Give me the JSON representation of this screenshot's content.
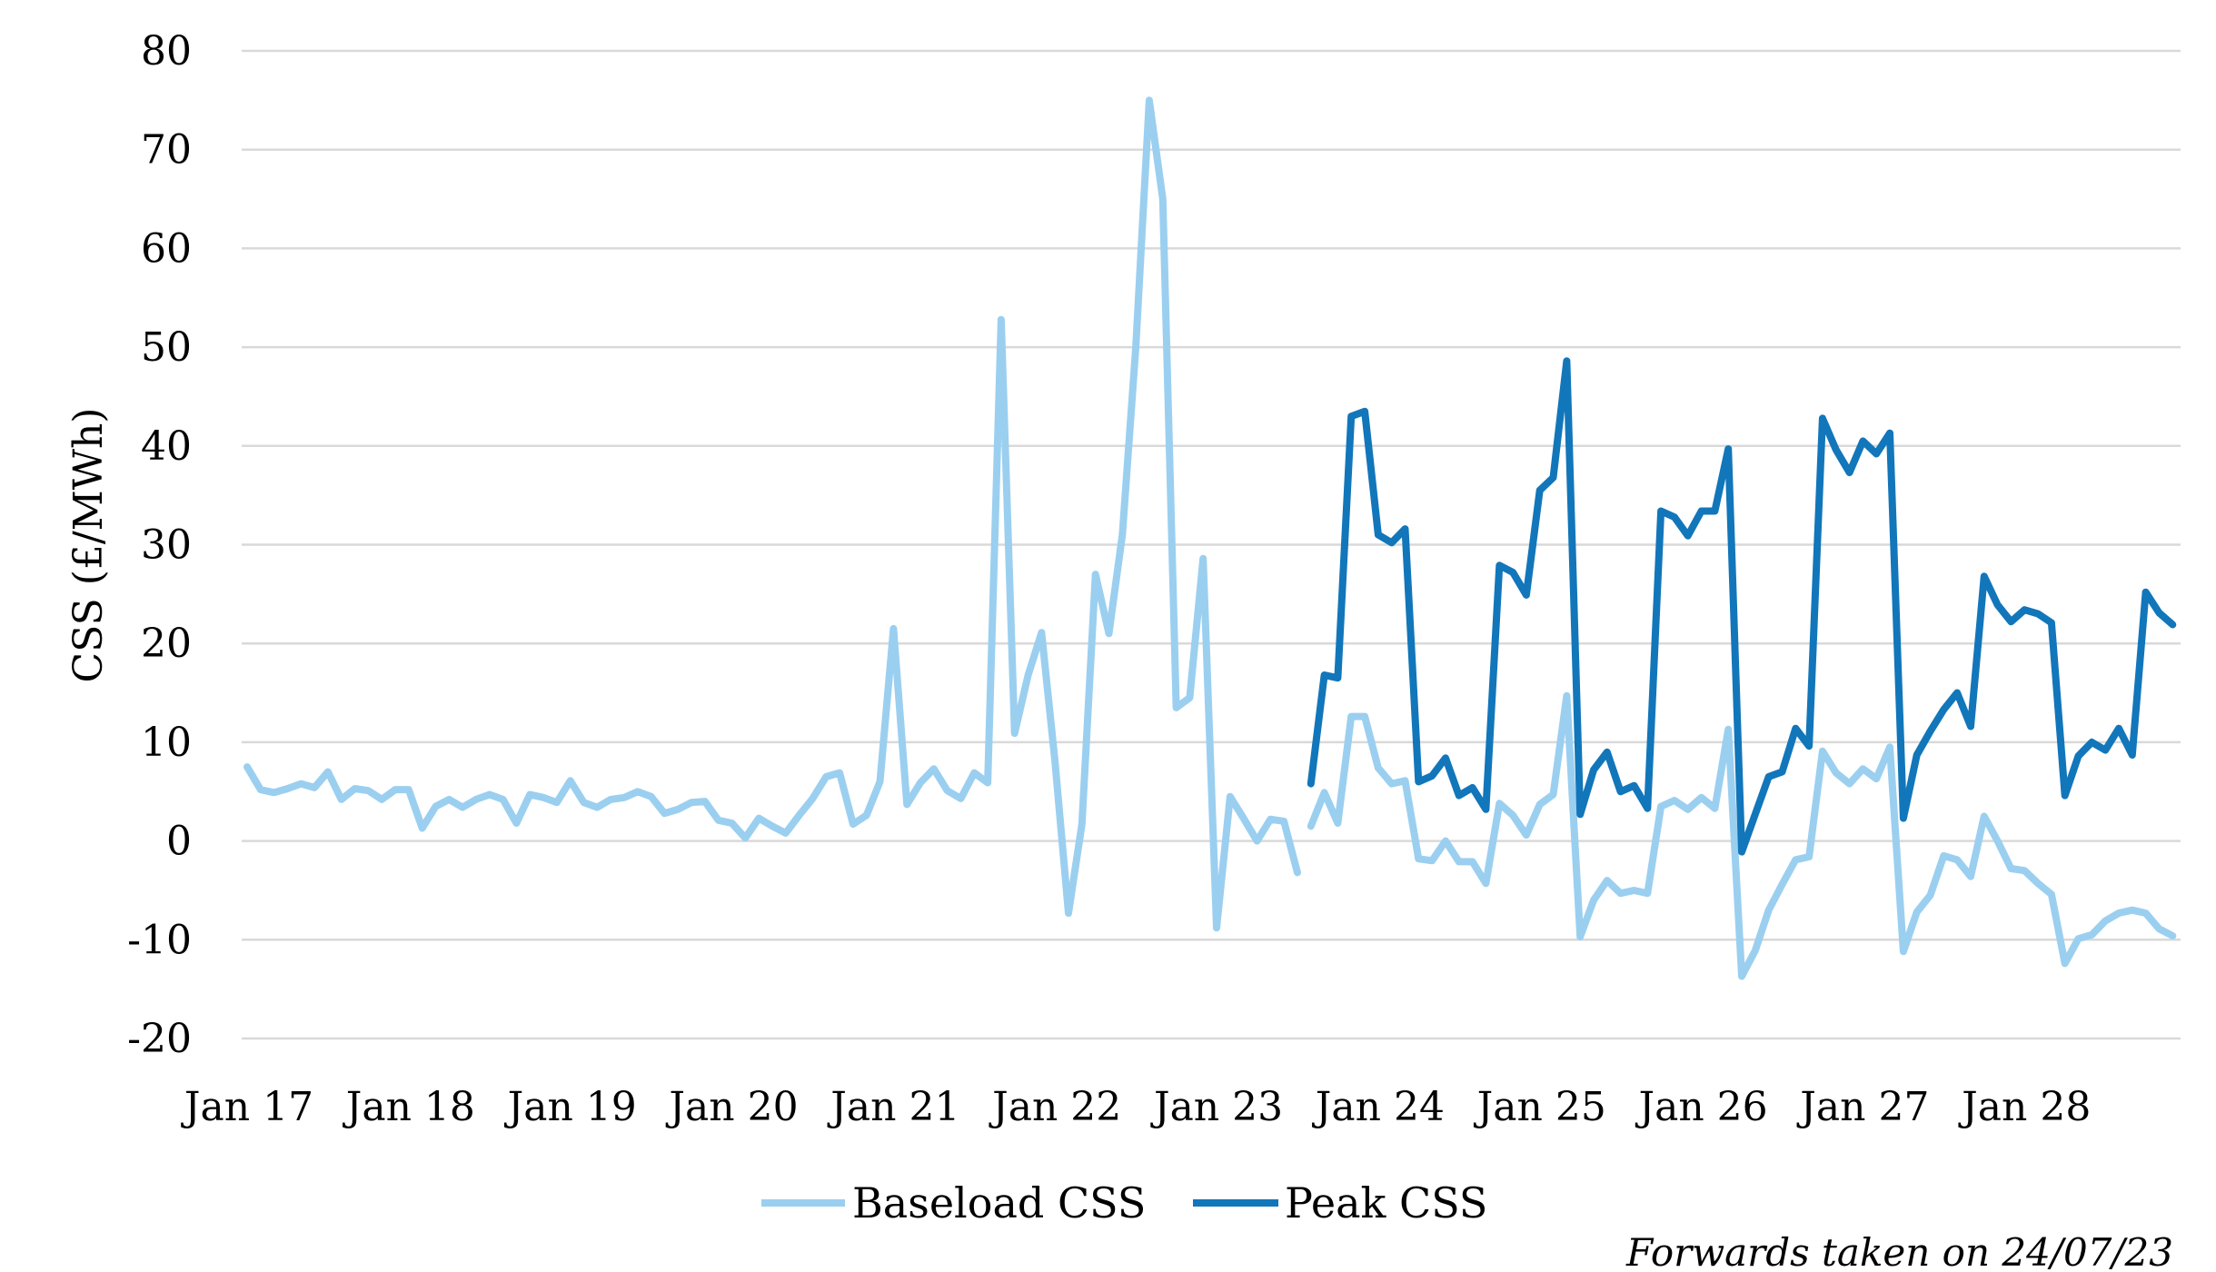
{
  "chart_data": {
    "type": "line",
    "title": "",
    "xlabel": "",
    "ylabel": "CSS (£/MWh)",
    "ylim": [
      -20,
      80
    ],
    "yticks": [
      80,
      70,
      60,
      50,
      40,
      30,
      20,
      10,
      0,
      -10,
      -20
    ],
    "ytick_labels": [
      "80",
      "70",
      "60",
      "50",
      "40",
      "30",
      "20",
      "10",
      "0",
      "-10",
      "-20"
    ],
    "x_start": "Jan 17",
    "x_frequency": "monthly",
    "xtick_labels": [
      "Jan 17",
      "Jan 18",
      "Jan 19",
      "Jan 20",
      "Jan 21",
      "Jan 22",
      "Jan 23",
      "Jan 24",
      "Jan 25",
      "Jan 26",
      "Jan 27",
      "Jan 28"
    ],
    "grid": true,
    "legend_position": "bottom",
    "series": [
      {
        "name": "Baseload CSS",
        "color": "#9BCFF0",
        "start_index": 0,
        "segment_break_after_index": 78,
        "values": [
          7.5,
          5.2,
          4.9,
          5.3,
          5.8,
          5.4,
          7.0,
          4.2,
          5.3,
          5.1,
          4.2,
          5.2,
          5.2,
          1.3,
          3.5,
          4.2,
          3.4,
          4.2,
          4.7,
          4.2,
          1.8,
          4.7,
          4.4,
          3.9,
          6.1,
          3.9,
          3.4,
          4.2,
          4.4,
          5.0,
          4.5,
          2.8,
          3.2,
          3.9,
          4.0,
          2.1,
          1.8,
          0.3,
          2.3,
          1.5,
          0.8,
          2.6,
          4.3,
          6.5,
          6.9,
          1.7,
          2.6,
          6.0,
          21.5,
          3.7,
          5.9,
          7.3,
          5.1,
          4.3,
          6.9,
          5.9,
          52.8,
          10.9,
          16.8,
          21.1,
          8.0,
          -7.3,
          1.7,
          27.0,
          21.0,
          31.0,
          50.0,
          75.0,
          65.0,
          13.5,
          14.5,
          28.6,
          -8.8,
          4.5,
          2.3,
          0.0,
          2.2,
          2.0,
          -3.2,
          1.5,
          4.9,
          1.8,
          12.6,
          12.6,
          7.4,
          5.8,
          6.1,
          -1.8,
          -2.0,
          0.0,
          -2.1,
          -2.1,
          -4.3,
          3.8,
          2.6,
          0.6,
          3.7,
          4.7,
          14.7,
          -9.7,
          -6.0,
          -4.0,
          -5.3,
          -5.0,
          -5.3,
          3.5,
          4.1,
          3.2,
          4.4,
          3.3,
          11.3,
          -13.7,
          -11.1,
          -7.0,
          -4.4,
          -1.9,
          -1.6,
          9.1,
          6.9,
          5.8,
          7.3,
          6.3,
          9.5,
          -11.2,
          -7.2,
          -5.5,
          -1.5,
          -1.9,
          -3.6,
          2.5,
          0.0,
          -2.8,
          -3.0,
          -4.3,
          -5.4,
          -12.4,
          -9.9,
          -9.5,
          -8.1,
          -7.3,
          -7.0,
          -7.3,
          -8.9,
          -9.6
        ]
      },
      {
        "name": "Peak CSS",
        "color": "#1276BA",
        "start_index": 79,
        "values": [
          5.8,
          16.8,
          16.5,
          43.0,
          43.5,
          31.0,
          30.2,
          31.6,
          6.0,
          6.6,
          8.4,
          4.6,
          5.4,
          3.2,
          27.9,
          27.2,
          24.9,
          35.5,
          36.8,
          48.6,
          2.7,
          7.2,
          9.0,
          5.0,
          5.6,
          3.3,
          33.4,
          32.8,
          30.9,
          33.4,
          33.4,
          39.7,
          -1.1,
          2.7,
          6.5,
          7.0,
          11.4,
          9.6,
          42.8,
          39.6,
          37.3,
          40.5,
          39.2,
          41.3,
          2.3,
          8.7,
          11.1,
          13.3,
          15.0,
          11.6,
          26.8,
          23.9,
          22.2,
          23.4,
          23.0,
          22.1,
          4.6,
          8.6,
          10.0,
          9.2,
          11.4,
          8.7,
          25.2,
          23.1,
          21.9
        ]
      }
    ],
    "annotation": "Forwards taken on 24/07/23"
  }
}
